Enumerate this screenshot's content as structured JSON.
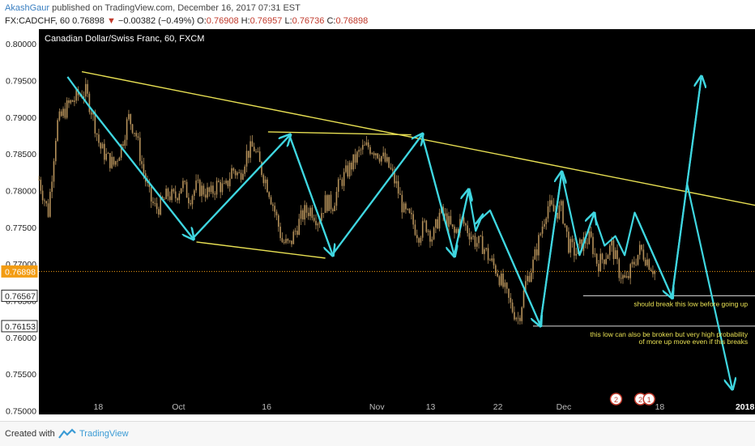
{
  "header": {
    "author": "AkashGaur",
    "published_text": "published on TradingView.com, December 16, 2017 07:31 EST",
    "symbol_prefix": "FX:CADCHF, 60",
    "last_price": "0.76898",
    "change": "−0.00382 (−0.49%)",
    "o_label": "O:",
    "o_value": "0.76908",
    "h_label": "H:",
    "h_value": "0.76957",
    "l_label": "L:",
    "l_value": "0.76736",
    "c_label": "C:",
    "c_value": "0.76898"
  },
  "footer": {
    "created_with": "Created with",
    "brand": "TradingView"
  },
  "colors": {
    "background": "#000000",
    "candle": "#b5915a",
    "trendline": "#e8e053",
    "arrow": "#3fd6e0",
    "support": "#dddddd",
    "annotation_text": "#e8e053",
    "price_line": "#f39c12"
  },
  "chart_data": {
    "type": "candlestick",
    "title": "Canadian Dollar/Swiss Franc, 60, FXCM",
    "ylim": [
      0.7495,
      0.802
    ],
    "y_ticks": [
      0.75,
      0.755,
      0.76,
      0.765,
      0.77,
      0.775,
      0.78,
      0.785,
      0.79,
      0.795,
      0.8
    ],
    "y_tick_labels": [
      "0.75000",
      "0.75500",
      "0.76000",
      "0.76500",
      "0.77000",
      "0.77500",
      "0.78000",
      "0.78500",
      "0.79000",
      "0.79500",
      "0.80000"
    ],
    "x_ticks": [
      "18",
      "Oct",
      "16",
      "Nov",
      "13",
      "22",
      "Dec",
      "18",
      "2018"
    ],
    "x_tick_pos": [
      0.083,
      0.195,
      0.318,
      0.472,
      0.547,
      0.641,
      0.733,
      0.867,
      0.986
    ],
    "price_labels": [
      {
        "value": 0.76898,
        "text": "0.76898",
        "style": "current"
      },
      {
        "value": 0.76567,
        "text": "0.76567",
        "style": "level"
      },
      {
        "value": 0.76153,
        "text": "0.76153",
        "style": "level"
      }
    ],
    "close_path": [
      [
        0.0,
        0.7815
      ],
      [
        0.013,
        0.777
      ],
      [
        0.025,
        0.789
      ],
      [
        0.04,
        0.7915
      ],
      [
        0.055,
        0.793
      ],
      [
        0.065,
        0.7935
      ],
      [
        0.075,
        0.7905
      ],
      [
        0.085,
        0.786
      ],
      [
        0.095,
        0.7845
      ],
      [
        0.105,
        0.7835
      ],
      [
        0.115,
        0.786
      ],
      [
        0.125,
        0.79
      ],
      [
        0.135,
        0.788
      ],
      [
        0.145,
        0.783
      ],
      [
        0.155,
        0.779
      ],
      [
        0.163,
        0.7775
      ],
      [
        0.17,
        0.778
      ],
      [
        0.18,
        0.7795
      ],
      [
        0.19,
        0.779
      ],
      [
        0.2,
        0.781
      ],
      [
        0.21,
        0.779
      ],
      [
        0.22,
        0.7805
      ],
      [
        0.23,
        0.78
      ],
      [
        0.24,
        0.7795
      ],
      [
        0.25,
        0.781
      ],
      [
        0.26,
        0.78
      ],
      [
        0.27,
        0.783
      ],
      [
        0.28,
        0.782
      ],
      [
        0.29,
        0.785
      ],
      [
        0.3,
        0.786
      ],
      [
        0.31,
        0.783
      ],
      [
        0.32,
        0.7805
      ],
      [
        0.33,
        0.777
      ],
      [
        0.34,
        0.773
      ],
      [
        0.35,
        0.7725
      ],
      [
        0.36,
        0.775
      ],
      [
        0.37,
        0.777
      ],
      [
        0.38,
        0.7775
      ],
      [
        0.39,
        0.776
      ],
      [
        0.4,
        0.7785
      ],
      [
        0.41,
        0.778
      ],
      [
        0.42,
        0.781
      ],
      [
        0.43,
        0.7825
      ],
      [
        0.44,
        0.784
      ],
      [
        0.45,
        0.7855
      ],
      [
        0.46,
        0.786
      ],
      [
        0.47,
        0.7855
      ],
      [
        0.48,
        0.7845
      ],
      [
        0.49,
        0.783
      ],
      [
        0.5,
        0.7805
      ],
      [
        0.51,
        0.777
      ],
      [
        0.52,
        0.776
      ],
      [
        0.53,
        0.774
      ],
      [
        0.54,
        0.7755
      ],
      [
        0.55,
        0.7735
      ],
      [
        0.56,
        0.777
      ],
      [
        0.57,
        0.776
      ],
      [
        0.58,
        0.774
      ],
      [
        0.59,
        0.776
      ],
      [
        0.6,
        0.7745
      ],
      [
        0.61,
        0.773
      ],
      [
        0.62,
        0.7725
      ],
      [
        0.63,
        0.7705
      ],
      [
        0.64,
        0.769
      ],
      [
        0.65,
        0.7665
      ],
      [
        0.66,
        0.764
      ],
      [
        0.67,
        0.7625
      ],
      [
        0.68,
        0.7675
      ],
      [
        0.69,
        0.77
      ],
      [
        0.7,
        0.774
      ],
      [
        0.71,
        0.778
      ],
      [
        0.72,
        0.777
      ],
      [
        0.73,
        0.7775
      ],
      [
        0.74,
        0.7725
      ],
      [
        0.75,
        0.7715
      ],
      [
        0.76,
        0.773
      ],
      [
        0.77,
        0.7735
      ],
      [
        0.78,
        0.77
      ],
      [
        0.79,
        0.771
      ],
      [
        0.8,
        0.7725
      ],
      [
        0.81,
        0.769
      ],
      [
        0.82,
        0.7675
      ],
      [
        0.83,
        0.77
      ],
      [
        0.84,
        0.772
      ],
      [
        0.85,
        0.7705
      ],
      [
        0.86,
        0.769
      ]
    ],
    "trendlines": [
      {
        "name": "upper-trendline",
        "color": "yellow",
        "from": [
          0.06,
          0.7962
        ],
        "to": [
          1.0,
          0.778
        ]
      },
      {
        "name": "mid-resistance-line",
        "color": "yellow",
        "from": [
          0.32,
          0.788
        ],
        "to": [
          0.52,
          0.7876
        ]
      },
      {
        "name": "lower-support-line",
        "color": "yellow",
        "from": [
          0.22,
          0.773
        ],
        "to": [
          0.4,
          0.7708
        ]
      }
    ],
    "support_lines": [
      {
        "name": "support-line-76567",
        "from": [
          0.76,
          0.76567
        ],
        "to": [
          1.0,
          0.76567
        ]
      },
      {
        "name": "support-line-76153",
        "from": [
          0.69,
          0.76153
        ],
        "to": [
          1.0,
          0.76153
        ]
      }
    ],
    "arrow_path": [
      [
        0.04,
        0.7955
      ],
      [
        0.07,
        0.7915
      ],
      [
        0.215,
        0.7735
      ],
      [
        0.35,
        0.7875
      ],
      [
        0.41,
        0.7713
      ],
      [
        0.535,
        0.7876
      ],
      [
        0.58,
        0.7712
      ],
      [
        0.6,
        0.78
      ],
      [
        0.61,
        0.7745
      ],
      [
        0.62,
        0.7768
      ],
      [
        0.61,
        0.7755
      ],
      [
        0.63,
        0.7773
      ],
      [
        0.7,
        0.7617
      ],
      [
        0.73,
        0.7824
      ],
      [
        0.755,
        0.7712
      ],
      [
        0.775,
        0.7768
      ],
      [
        0.79,
        0.7725
      ],
      [
        0.805,
        0.7738
      ],
      [
        0.818,
        0.7712
      ],
      [
        0.832,
        0.777
      ],
      [
        0.884,
        0.7655
      ],
      [
        0.925,
        0.7954
      ]
    ],
    "arrow_heads": [
      [
        0.35,
        0.7875
      ],
      [
        0.41,
        0.7713
      ],
      [
        0.535,
        0.7876
      ],
      [
        0.58,
        0.7712
      ],
      [
        0.6,
        0.78
      ],
      [
        0.7,
        0.7617
      ],
      [
        0.73,
        0.7824
      ],
      [
        0.775,
        0.7768
      ],
      [
        0.884,
        0.7655
      ],
      [
        0.925,
        0.7954
      ],
      [
        0.968,
        0.7531
      ],
      [
        0.215,
        0.7735
      ]
    ],
    "down_arrow": {
      "from": [
        0.905,
        0.781
      ],
      "to": [
        0.968,
        0.7531
      ]
    },
    "annotations": [
      {
        "text": "should break this low before going up"
      },
      {
        "text": "this low can also be broken but very high probability"
      },
      {
        "text": "of more up move even if this breaks"
      }
    ],
    "event_markers": [
      "2",
      "2",
      "1"
    ]
  }
}
